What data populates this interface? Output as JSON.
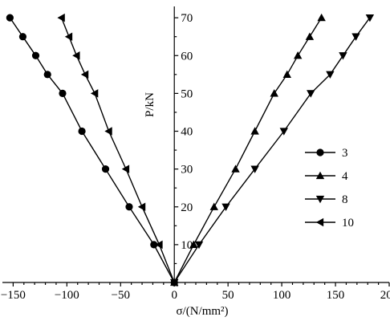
{
  "chart_data": {
    "type": "line",
    "title": "",
    "xlabel": "σ/(N/mm²)",
    "ylabel": "P/kN",
    "xlim": [
      -160,
      200
    ],
    "ylim": [
      0,
      73
    ],
    "xticks": [
      -150,
      -100,
      -50,
      0,
      50,
      100,
      150,
      200
    ],
    "yticks": [
      10,
      20,
      30,
      40,
      50,
      60,
      70
    ],
    "xtick_labels": [
      "−150",
      "−100",
      "−50",
      "0",
      "50",
      "100",
      "150",
      "200"
    ],
    "ytick_labels": [
      "10",
      "20",
      "30",
      "40",
      "50",
      "60",
      "70"
    ],
    "grid": false,
    "legend_position": "right",
    "series": [
      {
        "name": "3",
        "marker": "circle",
        "points": [
          [
            0,
            0
          ],
          [
            -19,
            10
          ],
          [
            -42,
            20
          ],
          [
            -64,
            30
          ],
          [
            -86,
            40
          ],
          [
            -104,
            50
          ],
          [
            -118,
            55
          ],
          [
            -129,
            60
          ],
          [
            -141,
            65
          ],
          [
            -153,
            70
          ]
        ]
      },
      {
        "name": "4",
        "marker": "triangle-up",
        "points": [
          [
            0,
            0
          ],
          [
            18,
            10
          ],
          [
            37,
            20
          ],
          [
            57,
            30
          ],
          [
            75,
            40
          ],
          [
            93,
            50
          ],
          [
            105,
            55
          ],
          [
            115,
            60
          ],
          [
            126,
            65
          ],
          [
            137,
            70
          ]
        ]
      },
      {
        "name": "8",
        "marker": "triangle-down",
        "points": [
          [
            0,
            0
          ],
          [
            23,
            10
          ],
          [
            48,
            20
          ],
          [
            75,
            30
          ],
          [
            102,
            40
          ],
          [
            127,
            50
          ],
          [
            145,
            55
          ],
          [
            157,
            60
          ],
          [
            169,
            65
          ],
          [
            182,
            70
          ]
        ]
      },
      {
        "name": "10",
        "marker": "triangle-left",
        "points": [
          [
            0,
            0
          ],
          [
            -14,
            10
          ],
          [
            -30,
            20
          ],
          [
            -45,
            30
          ],
          [
            -61,
            40
          ],
          [
            -74,
            50
          ],
          [
            -83,
            55
          ],
          [
            -91,
            60
          ],
          [
            -98,
            65
          ],
          [
            -105,
            70
          ]
        ]
      }
    ]
  }
}
